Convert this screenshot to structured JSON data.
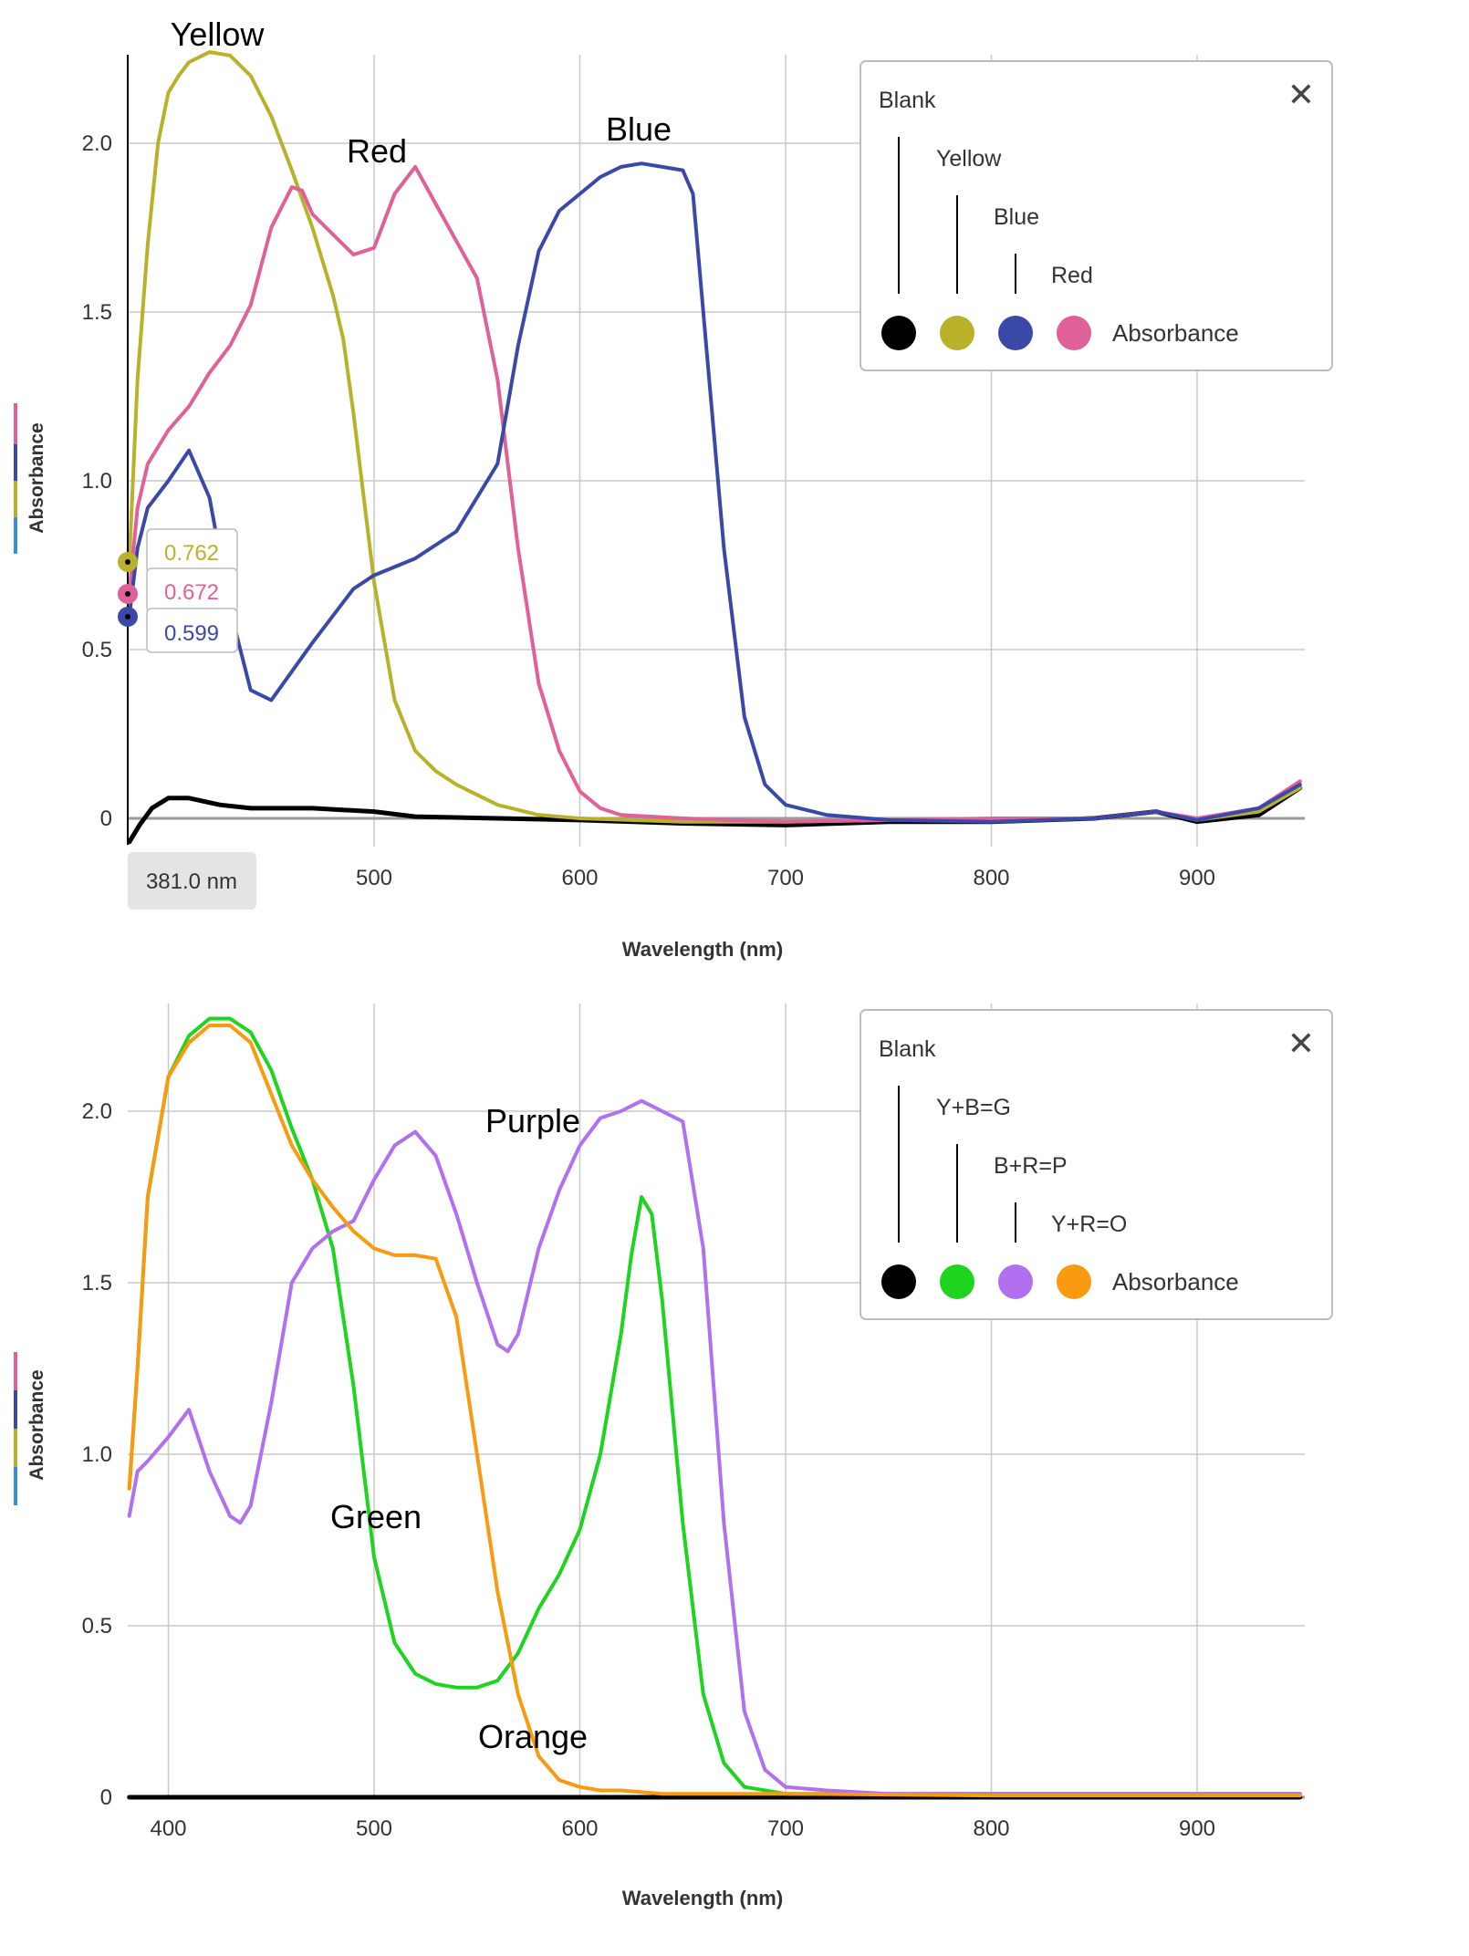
{
  "chart_data": [
    {
      "type": "line",
      "xlabel": "Wavelength (nm)",
      "ylabel": "Absorbance",
      "xlim": [
        380,
        950
      ],
      "ylim": [
        -0.08,
        2.3
      ],
      "x_ticks": [
        500,
        600,
        700,
        800,
        900
      ],
      "y_ticks": [
        0,
        0.5,
        1.0,
        1.5,
        2.0
      ],
      "y_tick_labels": [
        "0",
        "0.5",
        "1.0",
        "1.5",
        "2.0"
      ],
      "grid": true,
      "legend": {
        "placement": "top-right",
        "entries": [
          "Blank",
          "Yellow",
          "Blue",
          "Red"
        ],
        "measure_label": "Absorbance",
        "close_glyph": "✕"
      },
      "cursor": {
        "x_label": "381.0 nm",
        "readouts": [
          {
            "series": "Yellow",
            "value": "0.762",
            "color": "#b9b12a"
          },
          {
            "series": "Red",
            "value": "0.672",
            "color": "#e0609a"
          },
          {
            "series": "Blue",
            "value": "0.599",
            "color": "#3a49a8"
          }
        ]
      },
      "annotations": [
        "Yellow",
        "Red",
        "Blue"
      ],
      "series": [
        {
          "name": "Blank",
          "color": "#000000",
          "x": [
            381,
            386,
            392,
            400,
            410,
            425,
            440,
            470,
            500,
            520,
            560,
            600,
            650,
            700,
            750,
            800,
            850,
            880,
            900,
            930,
            950
          ],
          "y": [
            -0.07,
            -0.02,
            0.03,
            0.06,
            0.06,
            0.04,
            0.03,
            0.03,
            0.02,
            0.005,
            0.0,
            -0.005,
            -0.015,
            -0.02,
            -0.01,
            -0.01,
            0.0,
            0.02,
            -0.01,
            0.01,
            0.09
          ]
        },
        {
          "name": "Yellow",
          "color": "#b9b12a",
          "x": [
            381,
            385,
            390,
            395,
            400,
            405,
            410,
            420,
            430,
            440,
            450,
            460,
            470,
            480,
            485,
            490,
            500,
            510,
            520,
            530,
            540,
            560,
            580,
            600,
            650,
            700,
            750,
            800,
            850,
            880,
            900,
            930,
            950
          ],
          "y": [
            0.76,
            1.3,
            1.7,
            2.0,
            2.15,
            2.2,
            2.24,
            2.27,
            2.26,
            2.2,
            2.08,
            1.92,
            1.75,
            1.55,
            1.42,
            1.2,
            0.7,
            0.35,
            0.2,
            0.14,
            0.1,
            0.04,
            0.01,
            0.0,
            -0.01,
            -0.01,
            -0.005,
            -0.005,
            0.0,
            0.02,
            -0.005,
            0.02,
            0.09
          ]
        },
        {
          "name": "Red",
          "color": "#e0609a",
          "x": [
            381,
            385,
            390,
            400,
            410,
            420,
            430,
            440,
            450,
            460,
            465,
            470,
            480,
            490,
            500,
            510,
            520,
            530,
            540,
            550,
            560,
            570,
            580,
            590,
            600,
            610,
            620,
            650,
            700,
            750,
            800,
            850,
            880,
            900,
            930,
            950
          ],
          "y": [
            0.67,
            0.92,
            1.05,
            1.15,
            1.22,
            1.32,
            1.4,
            1.52,
            1.75,
            1.87,
            1.86,
            1.79,
            1.73,
            1.67,
            1.69,
            1.85,
            1.93,
            1.82,
            1.71,
            1.6,
            1.3,
            0.8,
            0.4,
            0.2,
            0.08,
            0.03,
            0.01,
            0.0,
            -0.01,
            -0.005,
            0.0,
            0.0,
            0.02,
            0.0,
            0.03,
            0.11
          ]
        },
        {
          "name": "Blue",
          "color": "#3a49a8",
          "x": [
            381,
            385,
            390,
            400,
            410,
            420,
            430,
            440,
            450,
            470,
            490,
            500,
            520,
            540,
            560,
            570,
            580,
            590,
            600,
            610,
            620,
            630,
            640,
            650,
            655,
            660,
            670,
            680,
            690,
            700,
            720,
            750,
            800,
            850,
            880,
            900,
            930,
            950
          ],
          "y": [
            0.6,
            0.8,
            0.92,
            1.0,
            1.09,
            0.95,
            0.62,
            0.38,
            0.35,
            0.52,
            0.68,
            0.72,
            0.77,
            0.85,
            1.05,
            1.4,
            1.68,
            1.8,
            1.85,
            1.9,
            1.93,
            1.94,
            1.93,
            1.92,
            1.85,
            1.5,
            0.8,
            0.3,
            0.1,
            0.04,
            0.01,
            -0.005,
            -0.01,
            0.0,
            0.02,
            -0.005,
            0.03,
            0.1
          ]
        }
      ]
    },
    {
      "type": "line",
      "xlabel": "Wavelength (nm)",
      "ylabel": "Absorbance",
      "xlim": [
        380,
        950
      ],
      "ylim": [
        0,
        2.3
      ],
      "x_ticks": [
        400,
        500,
        600,
        700,
        800,
        900
      ],
      "y_ticks": [
        0,
        0.5,
        1.0,
        1.5,
        2.0
      ],
      "y_tick_labels": [
        "0",
        "0.5",
        "1.0",
        "1.5",
        "2.0"
      ],
      "grid": true,
      "legend": {
        "placement": "top-right",
        "entries": [
          "Blank",
          "Y+B=G",
          "B+R=P",
          "Y+R=O"
        ],
        "measure_label": "Absorbance",
        "close_glyph": "✕"
      },
      "annotations": [
        "Purple",
        "Green",
        "Orange"
      ],
      "series": [
        {
          "name": "Blank",
          "color": "#000000",
          "x": [
            381,
            450,
            550,
            650,
            750,
            850,
            950
          ],
          "y": [
            0.0,
            0.0,
            0.0,
            0.0,
            0.0,
            0.0,
            0.0
          ]
        },
        {
          "name": "Y+B=G",
          "color": "#1ed41e",
          "x": [
            381,
            385,
            390,
            400,
            410,
            420,
            430,
            440,
            450,
            460,
            470,
            480,
            490,
            495,
            500,
            510,
            520,
            530,
            540,
            550,
            560,
            570,
            580,
            590,
            600,
            610,
            620,
            625,
            630,
            635,
            640,
            650,
            660,
            670,
            680,
            700,
            750,
            800,
            850,
            900,
            950
          ],
          "y": [
            0.9,
            1.25,
            1.75,
            2.1,
            2.22,
            2.27,
            2.27,
            2.23,
            2.12,
            1.95,
            1.8,
            1.6,
            1.2,
            0.95,
            0.7,
            0.45,
            0.36,
            0.33,
            0.32,
            0.32,
            0.34,
            0.42,
            0.55,
            0.65,
            0.78,
            1.0,
            1.35,
            1.58,
            1.75,
            1.7,
            1.45,
            0.8,
            0.3,
            0.1,
            0.03,
            0.01,
            0.01,
            0.01,
            0.01,
            0.01,
            0.01
          ]
        },
        {
          "name": "B+R=P",
          "color": "#b070ef",
          "x": [
            381,
            385,
            390,
            400,
            410,
            420,
            430,
            435,
            440,
            450,
            460,
            470,
            480,
            490,
            500,
            510,
            520,
            530,
            540,
            550,
            560,
            565,
            570,
            580,
            590,
            600,
            610,
            620,
            630,
            640,
            650,
            660,
            670,
            680,
            690,
            700,
            720,
            750,
            800,
            850,
            900,
            950
          ],
          "y": [
            0.82,
            0.95,
            0.98,
            1.05,
            1.13,
            0.95,
            0.82,
            0.8,
            0.85,
            1.15,
            1.5,
            1.6,
            1.65,
            1.68,
            1.8,
            1.9,
            1.94,
            1.87,
            1.7,
            1.5,
            1.32,
            1.3,
            1.35,
            1.6,
            1.77,
            1.9,
            1.98,
            2.0,
            2.03,
            2.0,
            1.97,
            1.6,
            0.8,
            0.25,
            0.08,
            0.03,
            0.02,
            0.01,
            0.01,
            0.01,
            0.01,
            0.01
          ]
        },
        {
          "name": "Y+R=O",
          "color": "#fa9a10",
          "x": [
            381,
            385,
            390,
            400,
            410,
            420,
            430,
            440,
            450,
            460,
            470,
            480,
            490,
            500,
            510,
            520,
            530,
            540,
            550,
            560,
            570,
            580,
            590,
            600,
            610,
            620,
            640,
            660,
            700,
            800,
            900,
            950
          ],
          "y": [
            0.9,
            1.25,
            1.75,
            2.1,
            2.2,
            2.25,
            2.25,
            2.2,
            2.05,
            1.9,
            1.8,
            1.72,
            1.65,
            1.6,
            1.58,
            1.58,
            1.57,
            1.4,
            1.0,
            0.6,
            0.3,
            0.12,
            0.05,
            0.03,
            0.02,
            0.02,
            0.01,
            0.01,
            0.01,
            0.005,
            0.005,
            0.005
          ]
        }
      ]
    }
  ]
}
